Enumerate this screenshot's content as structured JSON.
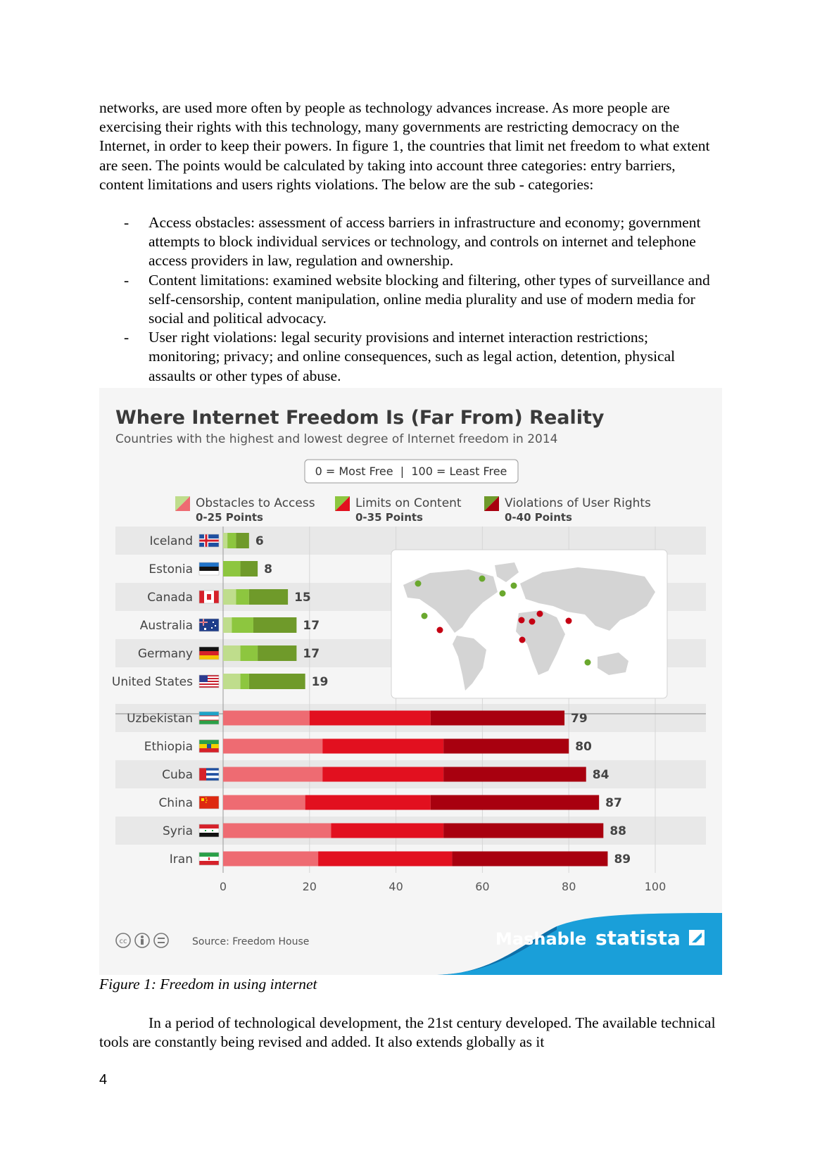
{
  "paragraph_top": "networks, are used more often by people as technology advances increase. As more people are exercising their rights with this technology, many governments are restricting democracy on the Internet, in order to keep their powers. In figure 1, the countries that limit net freedom to what extent are seen. The points would be calculated by taking into account three categories: entry barriers, content limitations and users rights violations. The below are the sub - categories:",
  "bullet_marker": "-",
  "bullets": [
    "Access obstacles: assessment of access barriers in infrastructure and economy; government attempts to block individual services or technology, and controls on internet and telephone access providers in law, regulation and ownership.",
    "Content limitations: examined website blocking and filtering, other types of surveillance and self-censorship, content manipulation, online media plurality and use of modern media for social and political advocacy.",
    "User right violations: legal security provisions and internet interaction restrictions; monitoring; privacy; and online consequences, such as legal action, detention, physical assaults or other types of abuse."
  ],
  "chart_data": {
    "type": "bar",
    "orientation": "horizontal",
    "stacked": true,
    "title": "Where Internet Freedom Is (Far From) Reality",
    "subtitle": "Countries with the highest and lowest degree of Internet freedom in 2014",
    "scale_note": "0 = Most Free  |  100 = Least Free",
    "legend": [
      {
        "name": "Obstacles to Access",
        "range": "0-25 Points"
      },
      {
        "name": "Limits on Content",
        "range": "0-35 Points"
      },
      {
        "name": "Violations of User Rights",
        "range": "0-40 Points"
      }
    ],
    "legend_placement": "top",
    "xlim": [
      0,
      100
    ],
    "x_ticks": [
      "0",
      "20",
      "40",
      "60",
      "80",
      "100"
    ],
    "grid": true,
    "free_colors": [
      "#bfdd8c",
      "#8dc63f",
      "#6f9a2a"
    ],
    "notfree_colors": [
      "#ee6b72",
      "#e2101f",
      "#a8000f"
    ],
    "countries": [
      {
        "name": "Iceland",
        "group": "free",
        "total": 6,
        "segments": [
          1,
          2,
          3
        ]
      },
      {
        "name": "Estonia",
        "group": "free",
        "total": 8,
        "segments": [
          0,
          4,
          4
        ]
      },
      {
        "name": "Canada",
        "group": "free",
        "total": 15,
        "segments": [
          3,
          3,
          9
        ]
      },
      {
        "name": "Australia",
        "group": "free",
        "total": 17,
        "segments": [
          2,
          5,
          10
        ]
      },
      {
        "name": "Germany",
        "group": "free",
        "total": 17,
        "segments": [
          4,
          4,
          9
        ]
      },
      {
        "name": "United States",
        "group": "free",
        "total": 19,
        "segments": [
          4,
          2,
          13
        ]
      },
      {
        "name": "Uzbekistan",
        "group": "notfree",
        "total": 79,
        "segments": [
          20,
          28,
          31
        ]
      },
      {
        "name": "Ethiopia",
        "group": "notfree",
        "total": 80,
        "segments": [
          23,
          28,
          29
        ]
      },
      {
        "name": "Cuba",
        "group": "notfree",
        "total": 84,
        "segments": [
          23,
          28,
          33
        ]
      },
      {
        "name": "China",
        "group": "notfree",
        "total": 87,
        "segments": [
          19,
          29,
          39
        ]
      },
      {
        "name": "Syria",
        "group": "notfree",
        "total": 88,
        "segments": [
          25,
          26,
          37
        ]
      },
      {
        "name": "Iran",
        "group": "notfree",
        "total": 89,
        "segments": [
          22,
          31,
          36
        ]
      }
    ],
    "source": "Source: Freedom House",
    "brands": [
      "Mashable",
      "statista"
    ]
  },
  "caption": "Figure 1: Freedom in using internet",
  "paragraph_bottom": "In a period of technological development, the 21st century developed. The available technical tools are constantly being revised and added. It also extends globally as it",
  "page_number": "4"
}
